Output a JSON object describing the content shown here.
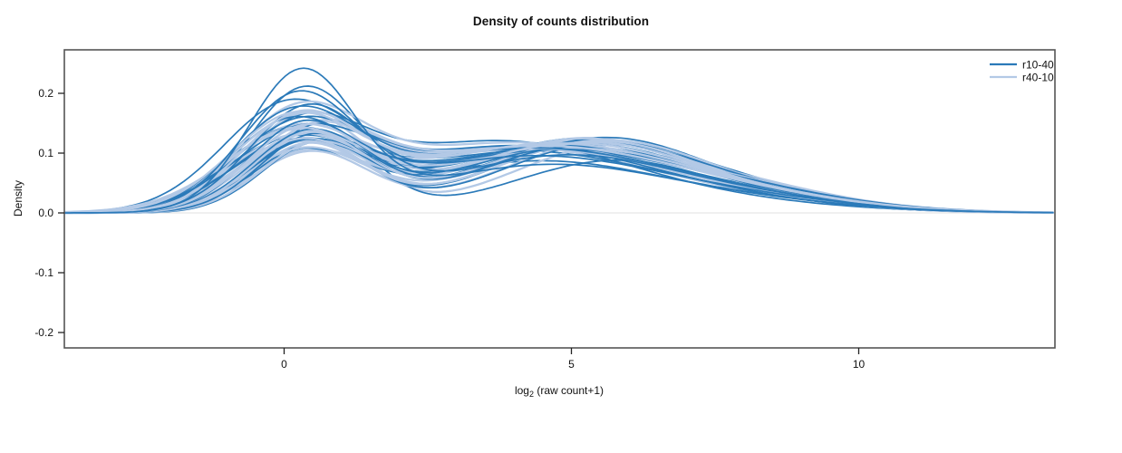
{
  "title": "Density of counts distribution",
  "axes": {
    "y_label": "Density",
    "x_label": {
      "base": "log",
      "sub": "2",
      "rest": " (raw count+1)"
    }
  },
  "legend": [
    {
      "label": "r10-40",
      "color": "#2b7ab9"
    },
    {
      "label": "r40-10",
      "color": "#b3c9e6"
    }
  ],
  "chart_data": {
    "type": "line",
    "title": "Density of counts distribution",
    "xlabel": "log2 (raw count+1)",
    "ylabel": "Density",
    "xlim": [
      -3.82,
      13.42
    ],
    "ylim": [
      -0.226,
      0.273
    ],
    "x_ticks": [
      {
        "value": 0,
        "label": "0"
      },
      {
        "value": 5,
        "label": "5"
      },
      {
        "value": 10,
        "label": "10"
      }
    ],
    "y_ticks": [
      {
        "value": 0.2,
        "label": "0.2"
      },
      {
        "value": 0.1,
        "label": "0.1"
      },
      {
        "value": 0,
        "label": "0.0"
      },
      {
        "value": -0.1,
        "label": "-0.1"
      },
      {
        "value": -0.2,
        "label": "-0.2"
      }
    ],
    "zero_line": true,
    "grid": false,
    "legend_position": "top-right",
    "curve_model": "density(x) = h1*exp(-(x-m1)^2/(2*s1^2)) + h2*exp(-(x-m2)^2/(2*s2^2)) + h3*exp(-(x-m3)^2/(2*s3^2)); params per curve: [h1,m1,s1,h2,m2,s2,h3,m3,s3]; bimodal densities with main mode near x=0.3 and broad mode near x=4-6",
    "series": [
      {
        "name": "r10-40",
        "color": "#2b7ab9",
        "stroke_width": 1.7,
        "curves": [
          [
            0.23,
            0.3,
            0.92,
            0.08,
            4.6,
            2.2,
            0.012,
            8.6,
            1.9
          ],
          [
            0.183,
            0.22,
            1.0,
            0.092,
            4.2,
            2.3,
            0.018,
            8.0,
            2.1
          ],
          [
            0.172,
            0.42,
            1.03,
            0.096,
            4.9,
            2.1,
            0.015,
            8.8,
            1.7
          ],
          [
            0.15,
            0.18,
            1.08,
            0.104,
            4.1,
            2.4,
            0.02,
            7.6,
            2.0
          ],
          [
            0.144,
            0.36,
            0.97,
            0.11,
            5.1,
            2.2,
            0.013,
            9.1,
            1.6
          ],
          [
            0.139,
            0.12,
            1.07,
            0.099,
            4.5,
            2.5,
            0.022,
            7.8,
            2.1
          ],
          [
            0.134,
            0.46,
            1.01,
            0.114,
            5.3,
            2.0,
            0.011,
            9.3,
            1.5
          ],
          [
            0.129,
            0.24,
            1.11,
            0.107,
            3.9,
            2.3,
            0.018,
            7.4,
            2.2
          ],
          [
            0.126,
            0.52,
            0.95,
            0.117,
            5.5,
            2.1,
            0.01,
            9.6,
            1.4
          ],
          [
            0.123,
            0.08,
            1.14,
            0.101,
            4.4,
            2.4,
            0.021,
            7.9,
            2.0
          ],
          [
            0.121,
            0.4,
            1.0,
            0.119,
            5.7,
            1.9,
            0.009,
            9.9,
            1.3
          ],
          [
            0.118,
            0.2,
            1.09,
            0.111,
            4.7,
            2.2,
            0.016,
            8.2,
            1.8
          ],
          [
            0.116,
            0.44,
            1.04,
            0.123,
            5.1,
            2.0,
            0.013,
            8.6,
            1.7
          ],
          [
            0.113,
            0.26,
            1.16,
            0.104,
            4.0,
            2.5,
            0.02,
            7.5,
            2.1
          ],
          [
            0.111,
            0.56,
            0.93,
            0.121,
            5.4,
            2.1,
            0.012,
            9.0,
            1.6
          ],
          [
            0.108,
            0.16,
            1.11,
            0.097,
            4.6,
            2.3,
            0.024,
            7.7,
            2.2
          ],
          [
            0.106,
            0.34,
            1.05,
            0.126,
            5.6,
            1.9,
            0.01,
            9.4,
            1.4
          ],
          [
            0.104,
            0.48,
            0.99,
            0.109,
            4.8,
            2.2,
            0.017,
            8.3,
            1.8
          ],
          [
            0.101,
            0.1,
            1.18,
            0.094,
            4.2,
            2.6,
            0.026,
            7.2,
            2.3
          ],
          [
            0.099,
            0.38,
            1.03,
            0.117,
            5.0,
            2.0,
            0.015,
            8.8,
            1.6
          ],
          [
            0.148,
            0.6,
            0.9,
            0.088,
            5.8,
            1.8,
            0.009,
            10.1,
            1.2
          ],
          [
            0.158,
            0.04,
            1.13,
            0.098,
            3.7,
            2.4,
            0.022,
            7.1,
            2.1
          ],
          [
            0.196,
            0.34,
            0.96,
            0.086,
            4.4,
            2.2,
            0.014,
            8.4,
            1.8
          ],
          [
            0.128,
            0.3,
            1.06,
            0.113,
            3.6,
            2.2,
            0.019,
            7.0,
            2.4
          ]
        ]
      },
      {
        "name": "r40-10",
        "color": "#b3c9e6",
        "stroke_width": 2.3,
        "curves": [
          [
            0.15,
            0.28,
            1.05,
            0.112,
            4.5,
            2.3,
            0.02,
            8.1,
            2.0
          ],
          [
            0.143,
            0.14,
            1.1,
            0.106,
            4.2,
            2.4,
            0.023,
            7.7,
            2.1
          ],
          [
            0.138,
            0.38,
            1.02,
            0.115,
            5.0,
            2.1,
            0.016,
            8.7,
            1.7
          ],
          [
            0.133,
            0.22,
            1.12,
            0.102,
            3.9,
            2.5,
            0.021,
            7.4,
            2.2
          ],
          [
            0.129,
            0.44,
            0.98,
            0.118,
            5.3,
            2.0,
            0.013,
            9.2,
            1.5
          ],
          [
            0.125,
            0.1,
            1.15,
            0.1,
            4.6,
            2.4,
            0.024,
            7.8,
            2.1
          ],
          [
            0.122,
            0.34,
            1.04,
            0.12,
            5.5,
            1.9,
            0.011,
            9.5,
            1.4
          ],
          [
            0.119,
            0.5,
            1.0,
            0.108,
            4.1,
            2.3,
            0.018,
            7.6,
            2.0
          ],
          [
            0.116,
            0.18,
            1.13,
            0.103,
            4.8,
            2.4,
            0.022,
            8.0,
            1.9
          ],
          [
            0.113,
            0.42,
            0.97,
            0.122,
            5.6,
            2.0,
            0.01,
            9.7,
            1.3
          ],
          [
            0.111,
            0.26,
            1.08,
            0.11,
            4.3,
            2.2,
            0.017,
            8.4,
            1.8
          ],
          [
            0.109,
            0.54,
            0.95,
            0.124,
            5.2,
            2.1,
            0.012,
            9.0,
            1.6
          ],
          [
            0.107,
            0.06,
            1.17,
            0.098,
            4.0,
            2.6,
            0.025,
            7.3,
            2.2
          ],
          [
            0.105,
            0.36,
            1.06,
            0.116,
            5.4,
            2.0,
            0.014,
            8.9,
            1.6
          ],
          [
            0.103,
            0.2,
            1.1,
            0.107,
            4.7,
            2.3,
            0.019,
            7.9,
            2.0
          ],
          [
            0.101,
            0.46,
            1.01,
            0.121,
            5.7,
            1.9,
            0.009,
            9.8,
            1.3
          ],
          [
            0.099,
            0.12,
            1.16,
            0.096,
            4.4,
            2.5,
            0.023,
            7.5,
            2.1
          ],
          [
            0.097,
            0.4,
            1.03,
            0.119,
            5.1,
            2.1,
            0.015,
            8.5,
            1.7
          ],
          [
            0.155,
            0.32,
            1.0,
            0.105,
            4.9,
            2.2,
            0.018,
            8.2,
            1.9
          ],
          [
            0.147,
            0.24,
            1.09,
            0.111,
            3.8,
            2.4,
            0.02,
            7.2,
            2.2
          ],
          [
            0.135,
            0.48,
            0.96,
            0.114,
            5.8,
            1.8,
            0.008,
            10.0,
            1.2
          ],
          [
            0.127,
            0.16,
            1.14,
            0.109,
            4.35,
            2.3,
            0.021,
            7.7,
            2.0
          ],
          [
            0.12,
            0.3,
            1.07,
            0.125,
            5.25,
            2.0,
            0.013,
            9.1,
            1.5
          ],
          [
            0.112,
            0.58,
            0.94,
            0.1,
            3.65,
            2.3,
            0.024,
            6.9,
            2.4
          ]
        ]
      }
    ]
  }
}
